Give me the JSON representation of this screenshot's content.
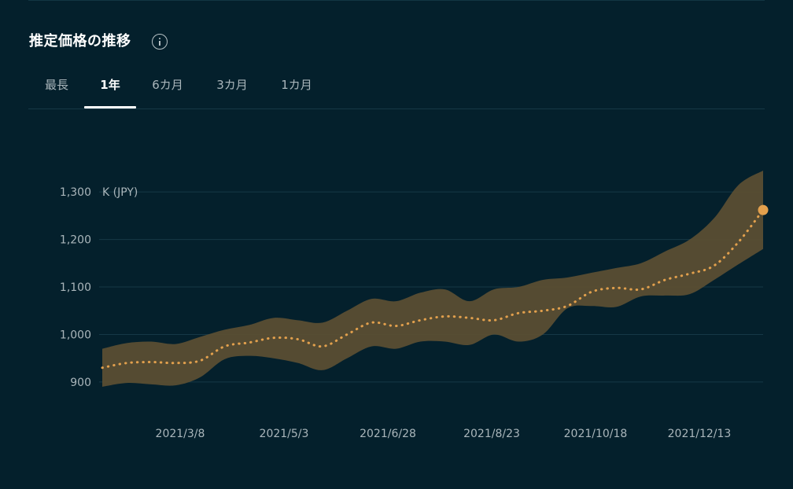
{
  "header": {
    "title": "推定価格の推移",
    "info_icon": "info-circle-icon"
  },
  "tabs": [
    {
      "label": "最長",
      "active": false
    },
    {
      "label": "1年",
      "active": true
    },
    {
      "label": "6カ月",
      "active": false
    },
    {
      "label": "3カ月",
      "active": false
    },
    {
      "label": "1カ月",
      "active": false
    }
  ],
  "colors": {
    "background": "#04202c",
    "band": "#5a4e33",
    "line": "#e2a04d",
    "grid": "#163846",
    "axis_text": "#aab6bb"
  },
  "chart_data": {
    "type": "line",
    "title": "",
    "unit_label": "K (JPY)",
    "ylim": [
      880,
      1340
    ],
    "yticks": [
      900,
      1000,
      1100,
      1200,
      1300
    ],
    "ytick_labels": [
      "900",
      "1,000",
      "1,100",
      "1,200",
      "1,300"
    ],
    "xtick_labels": [
      "2021/3/8",
      "2021/5/3",
      "2021/6/28",
      "2021/8/23",
      "2021/10/18",
      "2021/12/13"
    ],
    "xlim": [
      "2021-01-11",
      "2022-01-24"
    ],
    "grid": true,
    "x": [
      "2021-01-11",
      "2021-01-25",
      "2021-02-08",
      "2021-02-22",
      "2021-03-08",
      "2021-03-22",
      "2021-04-05",
      "2021-04-19",
      "2021-05-03",
      "2021-05-17",
      "2021-05-31",
      "2021-06-14",
      "2021-06-28",
      "2021-07-12",
      "2021-07-26",
      "2021-08-09",
      "2021-08-23",
      "2021-09-06",
      "2021-09-20",
      "2021-10-04",
      "2021-10-18",
      "2021-11-01",
      "2021-11-15",
      "2021-11-29",
      "2021-12-13",
      "2021-12-27",
      "2022-01-10",
      "2022-01-24"
    ],
    "series": [
      {
        "values": [
          930,
          940,
          942,
          940,
          945,
          975,
          983,
          993,
          990,
          975,
          1000,
          1025,
          1018,
          1030,
          1038,
          1035,
          1030,
          1045,
          1050,
          1060,
          1090,
          1098,
          1095,
          1115,
          1128,
          1145,
          1195,
          1262
        ]
      }
    ],
    "band": {
      "lower": [
        890,
        898,
        895,
        893,
        910,
        948,
        955,
        950,
        940,
        925,
        950,
        975,
        970,
        985,
        985,
        978,
        1000,
        985,
        1000,
        1055,
        1060,
        1058,
        1080,
        1082,
        1085,
        1115,
        1148,
        1180
      ],
      "upper": [
        970,
        982,
        985,
        980,
        995,
        1010,
        1020,
        1035,
        1030,
        1025,
        1050,
        1075,
        1070,
        1088,
        1095,
        1070,
        1095,
        1100,
        1115,
        1120,
        1130,
        1140,
        1150,
        1175,
        1200,
        1245,
        1315,
        1345
      ]
    }
  }
}
